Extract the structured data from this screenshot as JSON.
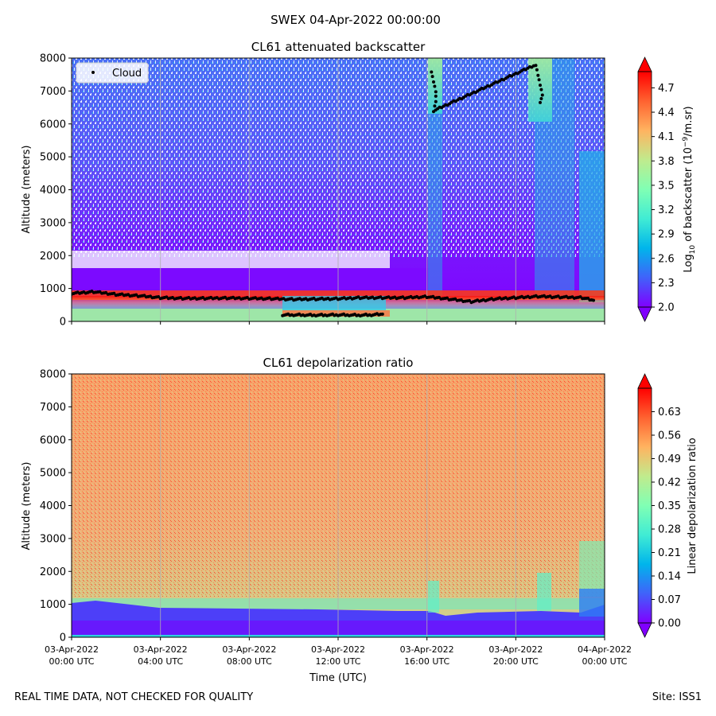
{
  "suptitle": "SWEX 04-Apr-2022 00:00:00",
  "footer": {
    "left": "REAL TIME DATA, NOT CHECKED FOR QUALITY",
    "right": "Site: ISS1"
  },
  "colors": {
    "rainbow": [
      "#8000ff",
      "#4062fa",
      "#00b5eb",
      "#40ecd4",
      "#80ffb4",
      "#c0eb8d",
      "#ffb360",
      "#ff6230",
      "#ff0000"
    ],
    "cloud_marker": "#000000",
    "surface_band": "#9ee6a8"
  },
  "chart_data": [
    {
      "type": "heatmap",
      "title": "CL61 attenuated backscatter",
      "xlabel": "",
      "ylabel": "Altitude (meters)",
      "ylim": [
        0,
        8000
      ],
      "xlim_hours": [
        0,
        24
      ],
      "yticks": [
        "0",
        "1000",
        "2000",
        "3000",
        "4000",
        "5000",
        "6000",
        "7000",
        "8000"
      ],
      "xticks_hours": [
        0,
        4,
        8,
        12,
        16,
        20,
        24
      ],
      "grid": true,
      "colorbar": {
        "label_main": "Log",
        "label_sub": "10",
        "label_rest": " of backscatter (10",
        "label_exp": "−9",
        "label_end": "/m.sr)",
        "range": [
          2.0,
          4.9
        ],
        "ticks": [
          "2.0",
          "2.3",
          "2.6",
          "2.9",
          "3.2",
          "3.5",
          "3.8",
          "4.1",
          "4.4",
          "4.7"
        ],
        "extend": "both"
      },
      "legend": {
        "label": "Cloud",
        "position": "top-left"
      },
      "cloud_base_series": {
        "name": "Cloud",
        "hours": [
          0,
          1,
          2,
          3,
          4,
          5,
          6,
          7,
          8,
          9,
          10,
          11,
          12,
          13,
          14,
          15,
          16,
          17,
          18,
          19,
          20,
          21,
          22,
          23,
          23.5
        ],
        "heights": [
          850,
          900,
          820,
          780,
          720,
          700,
          700,
          710,
          700,
          690,
          670,
          680,
          690,
          720,
          720,
          720,
          750,
          680,
          600,
          680,
          720,
          760,
          740,
          720,
          640
        ]
      },
      "low_cloud_series": {
        "name": "Cloud",
        "hours": [
          9.5,
          10,
          10.5,
          11,
          11.5,
          12,
          12.5,
          13,
          13.5,
          14
        ],
        "heights": [
          200,
          200,
          195,
          190,
          195,
          200,
          195,
          190,
          200,
          220
        ]
      },
      "high_cloud_series": {
        "name": "Cloud",
        "hours": [
          16.2,
          16.3,
          16.4,
          16.4,
          16.3,
          20.9,
          21.0,
          21.1,
          21.2,
          21.1
        ],
        "heights": [
          7600,
          7300,
          7000,
          6700,
          6400,
          7800,
          7500,
          7200,
          6900,
          6650
        ]
      }
    },
    {
      "type": "heatmap",
      "title": "CL61 depolarization ratio",
      "xlabel": "Time (UTC)",
      "ylabel": "Altitude (meters)",
      "ylim": [
        0,
        8000
      ],
      "xlim_hours": [
        0,
        24
      ],
      "yticks": [
        "0",
        "1000",
        "2000",
        "3000",
        "4000",
        "5000",
        "6000",
        "7000",
        "8000"
      ],
      "xticks": [
        {
          "date": "03-Apr-2022",
          "time": "00:00 UTC"
        },
        {
          "date": "03-Apr-2022",
          "time": "04:00 UTC"
        },
        {
          "date": "03-Apr-2022",
          "time": "08:00 UTC"
        },
        {
          "date": "03-Apr-2022",
          "time": "12:00 UTC"
        },
        {
          "date": "03-Apr-2022",
          "time": "16:00 UTC"
        },
        {
          "date": "03-Apr-2022",
          "time": "20:00 UTC"
        },
        {
          "date": "04-Apr-2022",
          "time": "00:00 UTC"
        }
      ],
      "grid": true,
      "colorbar": {
        "label": "Linear depolarization ratio",
        "range": [
          0.0,
          0.7
        ],
        "ticks": [
          "0.00",
          "0.07",
          "0.14",
          "0.21",
          "0.28",
          "0.35",
          "0.42",
          "0.49",
          "0.56",
          "0.63"
        ],
        "extend": "both"
      }
    }
  ]
}
